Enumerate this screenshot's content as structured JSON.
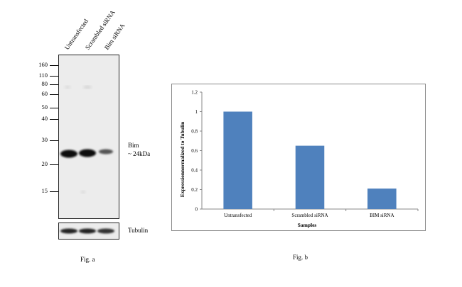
{
  "western_blot": {
    "lanes": [
      "Untransfected",
      "Scrambled siRNA",
      "Bim siRNA"
    ],
    "markers": [
      "160",
      "110",
      "80",
      "60",
      "50",
      "40",
      "30",
      "20",
      "15"
    ],
    "band_label_line1": "Bim",
    "band_label_line2": "~ 24kDa",
    "loading_control": "Tubulin",
    "fig_label": "Fig. a"
  },
  "chart_data": {
    "type": "bar",
    "categories": [
      "Untransfected",
      "Scrambled siRNA",
      "BIM siRNA"
    ],
    "values": [
      1.0,
      0.65,
      0.21
    ],
    "title": "",
    "xlabel": "Samples",
    "ylabel": "Expressionnormalized to Tubulin",
    "ylim": [
      0,
      1.2
    ],
    "yticks": [
      "0",
      "0.2",
      "0.4",
      "0.6",
      "0.8",
      "1",
      "1.2"
    ],
    "bar_color": "#4f81bd",
    "grid": false,
    "legend": "none"
  },
  "fig_b_label": "Fig. b"
}
